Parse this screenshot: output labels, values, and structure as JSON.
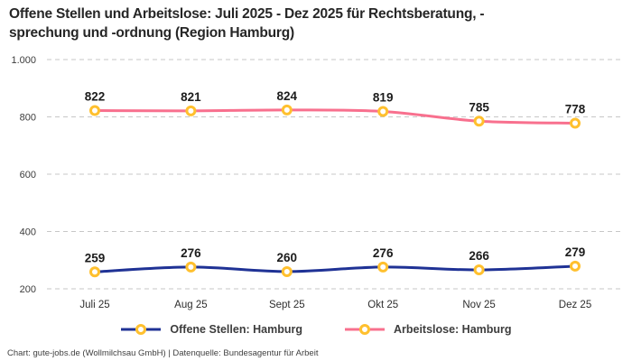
{
  "title": "Offene Stellen und Arbeitslose: Juli 2025 - Dez 2025 für Rechtsberatung, -sprechung und -ordnung (Region Hamburg)",
  "footer": "Chart: gute-jobs.de (Wollmilchsau GmbH) | Datenquelle: Bundesagentur für Arbeit",
  "colors": {
    "offene_stellen_line": "#1F3295",
    "arbeitslose_line": "#F8708E",
    "marker_ring": "#FFC02E",
    "marker_fill": "#ffffff",
    "gridline": "#c7c7c7"
  },
  "chart_data": {
    "type": "line",
    "categories": [
      "Juli 25",
      "Aug 25",
      "Sept 25",
      "Okt 25",
      "Nov 25",
      "Dez 25"
    ],
    "series": [
      {
        "name": "Offene Stellen: Hamburg",
        "color": "#1F3295",
        "values": [
          259,
          276,
          260,
          276,
          266,
          279
        ]
      },
      {
        "name": "Arbeitslose: Hamburg",
        "color": "#F8708E",
        "values": [
          822,
          821,
          824,
          819,
          785,
          778
        ]
      }
    ],
    "title": "Offene Stellen und Arbeitslose: Juli 2025 - Dez 2025 für Rechtsberatung, -sprechung und -ordnung (Region Hamburg)",
    "xlabel": "",
    "ylabel": "",
    "y_ticks": [
      200,
      400,
      600,
      800,
      1000
    ],
    "y_tick_labels": [
      "200",
      "400",
      "600",
      "800",
      "1.000"
    ],
    "ylim": [
      200,
      1000
    ],
    "grid": "dashed-horizontal",
    "legend_position": "bottom",
    "data_labels": true
  }
}
